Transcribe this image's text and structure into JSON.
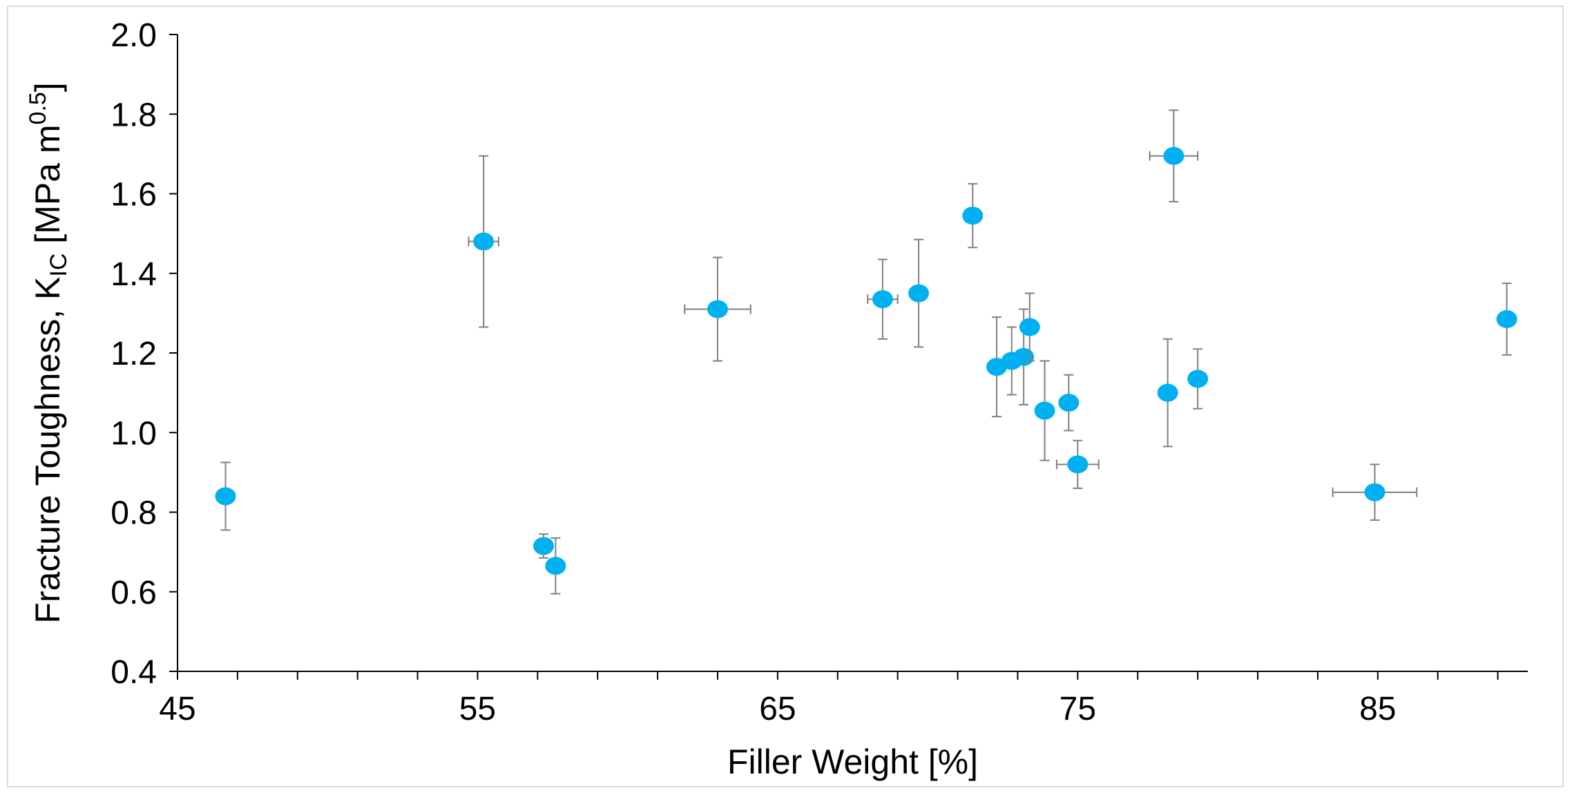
{
  "chart_data": {
    "type": "scatter",
    "title": "",
    "xlabel": "Filler Weight [%]",
    "ylabel_parts": {
      "prefix": "Fracture Toughness, K",
      "subscript": "IC",
      "middle": " [MPa m",
      "superscript": "0.5",
      "suffix": "]"
    },
    "xlim": [
      45,
      90
    ],
    "ylim": [
      0.4,
      2.0
    ],
    "x_ticks": [
      45,
      55,
      65,
      75,
      85
    ],
    "x_minor_step": 2,
    "y_ticks": [
      0.4,
      0.6,
      0.8,
      1.0,
      1.2,
      1.4,
      1.6,
      1.8,
      2.0
    ],
    "y_tick_labels": [
      "0.4",
      "0.6",
      "0.8",
      "1.0",
      "1.2",
      "1.4",
      "1.6",
      "1.8",
      "2.0"
    ],
    "x_tick_labels": [
      "45",
      "55",
      "65",
      "75",
      "85"
    ],
    "grid": false,
    "marker_color": "#00b0f0",
    "errorbar_color": "#7f7f7f",
    "points": [
      {
        "x": 46.6,
        "y": 0.84,
        "yerr": 0.085,
        "xerr": 0
      },
      {
        "x": 55.2,
        "y": 1.48,
        "yerr": 0.215,
        "xerr": 0.5
      },
      {
        "x": 57.2,
        "y": 0.715,
        "yerr": 0.03,
        "xerr": 0.2
      },
      {
        "x": 57.6,
        "y": 0.665,
        "yerr": 0.07,
        "xerr": 0
      },
      {
        "x": 63.0,
        "y": 1.31,
        "yerr": 0.13,
        "xerr": 1.1
      },
      {
        "x": 68.5,
        "y": 1.335,
        "yerr": 0.1,
        "xerr": 0.5
      },
      {
        "x": 69.7,
        "y": 1.35,
        "yerr": 0.135,
        "xerr": 0
      },
      {
        "x": 71.5,
        "y": 1.545,
        "yerr": 0.08,
        "xerr": 0
      },
      {
        "x": 72.3,
        "y": 1.165,
        "yerr": 0.125,
        "xerr": 0
      },
      {
        "x": 72.8,
        "y": 1.18,
        "yerr": 0.085,
        "xerr": 0
      },
      {
        "x": 73.2,
        "y": 1.19,
        "yerr": 0.12,
        "xerr": 0
      },
      {
        "x": 73.4,
        "y": 1.265,
        "yerr": 0.085,
        "xerr": 0
      },
      {
        "x": 73.9,
        "y": 1.055,
        "yerr": 0.125,
        "xerr": 0
      },
      {
        "x": 74.7,
        "y": 1.075,
        "yerr": 0.07,
        "xerr": 0
      },
      {
        "x": 75.0,
        "y": 0.92,
        "yerr": 0.06,
        "xerr": 0.7
      },
      {
        "x": 78.0,
        "y": 1.1,
        "yerr": 0.135,
        "xerr": 0
      },
      {
        "x": 78.2,
        "y": 1.695,
        "yerr": 0.115,
        "xerr": 0.8
      },
      {
        "x": 79.0,
        "y": 1.135,
        "yerr": 0.075,
        "xerr": 0
      },
      {
        "x": 84.9,
        "y": 0.85,
        "yerr": 0.07,
        "xerr": 1.4
      },
      {
        "x": 89.3,
        "y": 1.285,
        "yerr": 0.09,
        "xerr": 0
      }
    ]
  }
}
